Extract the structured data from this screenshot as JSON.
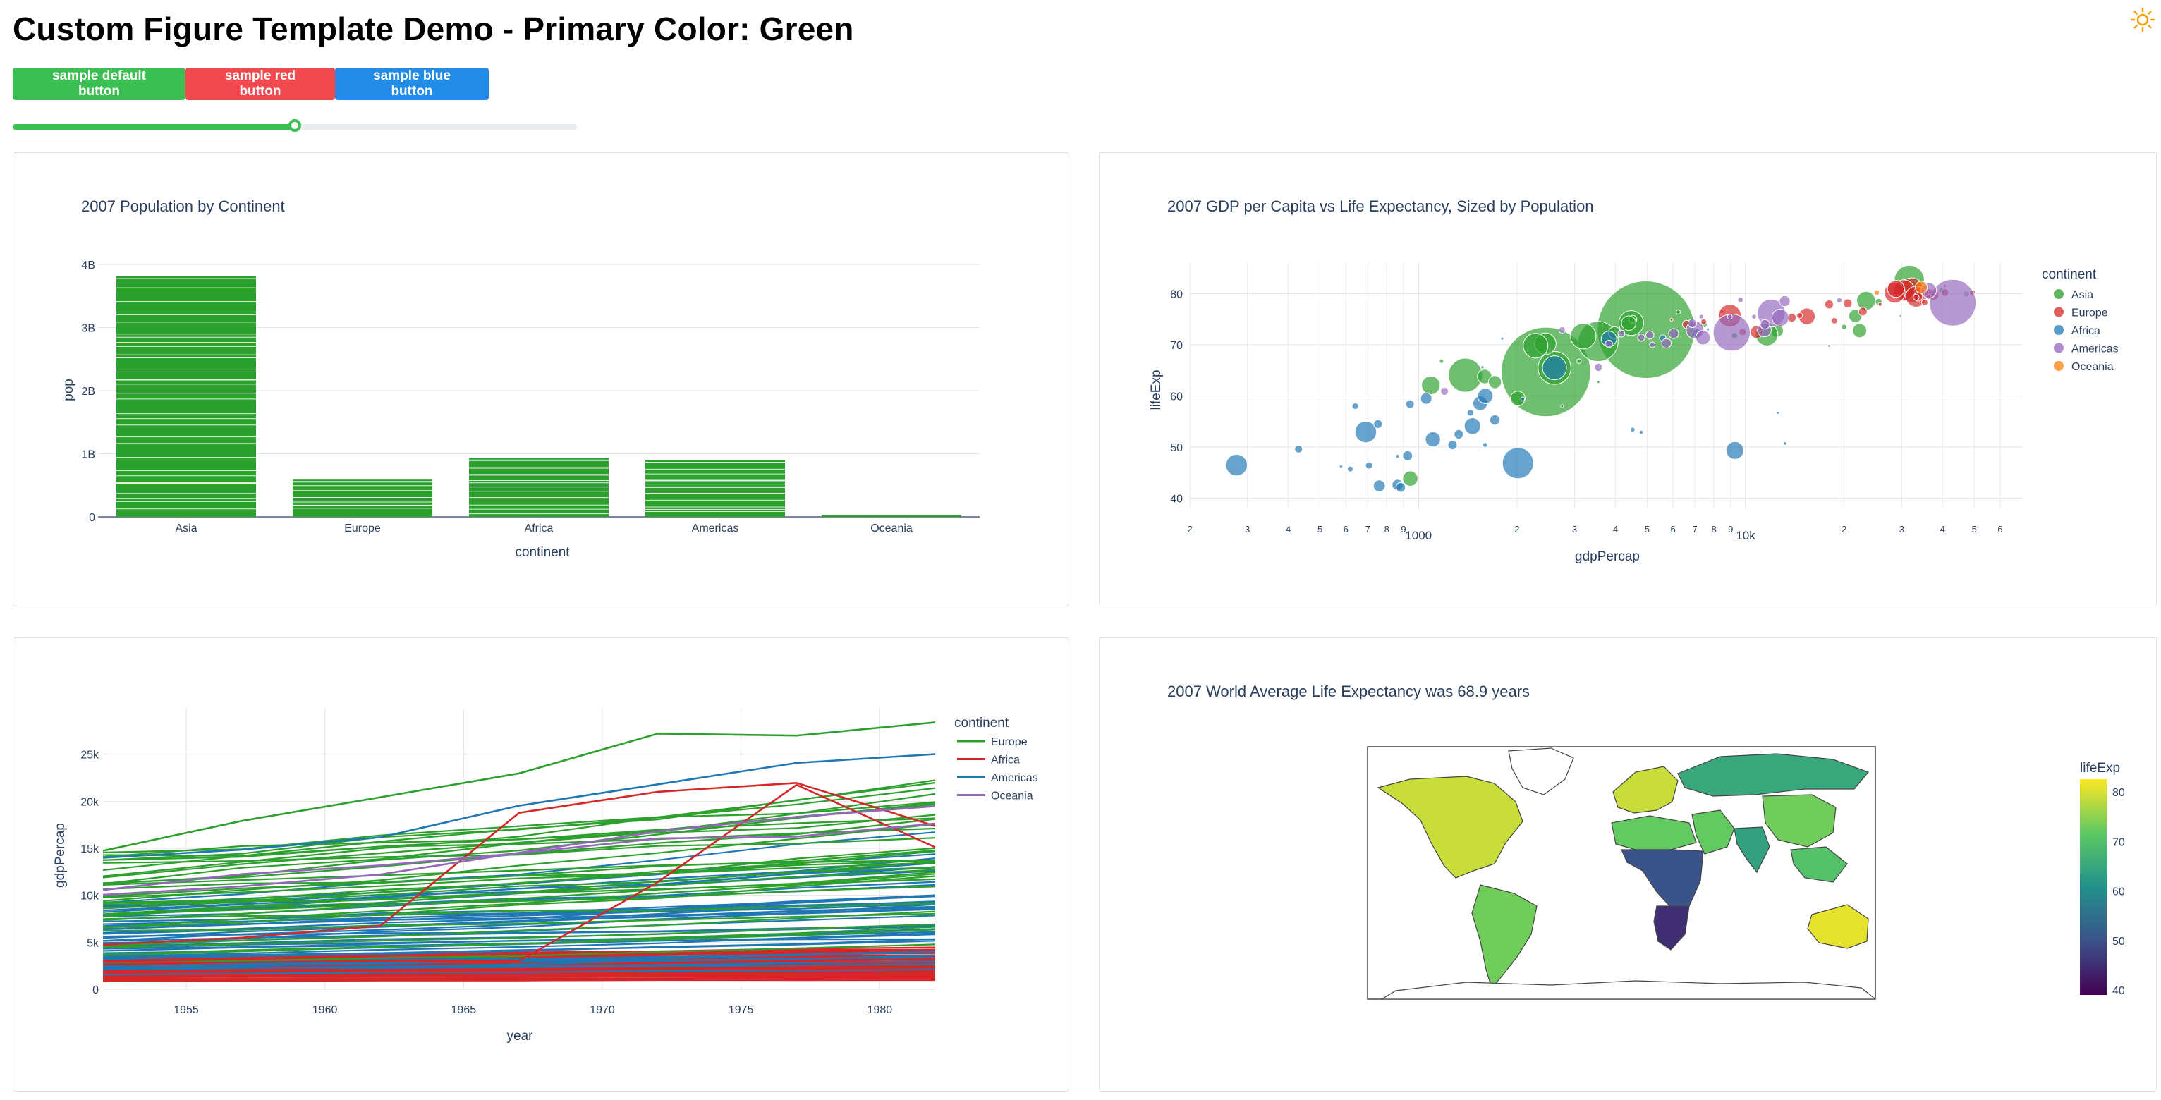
{
  "header": {
    "title": "Custom Figure Template Demo - Primary Color: Green",
    "theme_icon": "sun-icon"
  },
  "buttons": [
    {
      "label": "sample default button",
      "color": "#3cbf52"
    },
    {
      "label": "sample red button",
      "color": "#f04a4f"
    },
    {
      "label": "sample blue button",
      "color": "#228be6"
    }
  ],
  "slider": {
    "value_fraction": 0.5,
    "color": "#3cbf52"
  },
  "colors": {
    "green": "#2ca02c",
    "red": "#d62728",
    "blue": "#1f77b4",
    "purple": "#9467bd",
    "orange": "#ff7f0e",
    "text": "#2a3f5f"
  },
  "chart_data": [
    {
      "type": "bar",
      "title": "2007 Population by Continent",
      "xlabel": "continent",
      "ylabel": "pop",
      "categories": [
        "Asia",
        "Europe",
        "Africa",
        "Americas",
        "Oceania"
      ],
      "values": [
        3.81,
        0.59,
        0.93,
        0.9,
        0.025
      ],
      "unit": "billions",
      "ylim": [
        0,
        4.2
      ],
      "yticks": [
        "0",
        "1B",
        "2B",
        "3B",
        "4B"
      ],
      "color": "#2ca02c",
      "stacked_by": "country"
    },
    {
      "type": "scatter",
      "title": "2007 GDP per Capita vs Life Expectancy, Sized by Population",
      "xlabel": "gdpPercap",
      "ylabel": "lifeExp",
      "log_x": true,
      "xlim": [
        200,
        70000
      ],
      "ylim": [
        38,
        86
      ],
      "yticks": [
        40,
        50,
        60,
        70,
        80
      ],
      "xtick_labels": [
        "2",
        "3",
        "4",
        "5",
        "6",
        "7",
        "8",
        "9",
        "1000",
        "2",
        "3",
        "4",
        "5",
        "6",
        "7",
        "8",
        "9",
        "10k",
        "2",
        "3",
        "4",
        "5",
        "6"
      ],
      "legend": {
        "title": "continent",
        "position": "right",
        "items": [
          "Asia",
          "Europe",
          "Africa",
          "Americas",
          "Oceania"
        ]
      },
      "series": [
        {
          "name": "Asia",
          "color": "#2ca02c",
          "points": [
            [
              4959,
              72.96,
              1318
            ],
            [
              2452,
              64.7,
              1110
            ],
            [
              3541,
              70.65,
              223
            ],
            [
              1391,
              64.06,
              160
            ],
            [
              2605,
              65.48,
              150
            ],
            [
              1091,
              62.07,
              47.8
            ],
            [
              3190,
              71.69,
              91
            ],
            [
              4471,
              74.25,
              85
            ],
            [
              2442,
              70.2,
              65
            ],
            [
              944,
              43.83,
              31.9
            ],
            [
              12452,
              72.78,
              24.5
            ],
            [
              31656,
              82.6,
              127
            ],
            [
              23348,
              78.62,
              49
            ],
            [
              1593,
              63.79,
              28.9
            ],
            [
              2280,
              69.82,
              85
            ],
            [
              4184,
              72.4,
              3.1
            ],
            [
              3095,
              66.8,
              2.9
            ],
            [
              1713,
              62.7,
              23.3
            ],
            [
              22316,
              72.78,
              27.6
            ],
            [
              11606,
              71.99,
              69.5
            ],
            [
              4519,
              74.99,
              9.0
            ],
            [
              6223,
              76.4,
              2.6
            ],
            [
              39725,
              80.55,
              4.6
            ],
            [
              47307,
              79.97,
              4.5
            ],
            [
              21655,
              75.64,
              24.1
            ],
            [
              7458,
              74.0,
              6.1
            ],
            [
              3970,
              72.4,
              19.3
            ],
            [
              9253,
              71.8,
              5.5
            ],
            [
              2012,
              59.5,
              29.8
            ],
            [
              1176,
              66.8,
              2.5
            ],
            [
              4391,
              74.25,
              29.1
            ],
            [
              25523,
              78.4,
              6.4
            ],
            [
              29796,
              75.64,
              0.7
            ],
            [
              47143,
              80.2,
              0.8
            ],
            [
              20000,
              73.5,
              4.0
            ],
            [
              3548,
              62.7,
              0.9
            ]
          ]
        },
        {
          "name": "Europe",
          "color": "#d62728",
          "points": [
            [
              32170,
              80.7,
              82.4
            ],
            [
              30470,
              80.66,
              61.1
            ],
            [
              28569,
              80.2,
              60.0
            ],
            [
              33203,
              79.43,
              60.8
            ],
            [
              28821,
              80.94,
              40.4
            ],
            [
              15390,
              75.56,
              38.5
            ],
            [
              8458,
              76.5,
              1.8
            ],
            [
              10808,
              72.5,
              22.3
            ],
            [
              13858,
              75.3,
              10.2
            ],
            [
              18008,
              77.9,
              10.6
            ],
            [
              20510,
              78.1,
              10.7
            ],
            [
              22833,
              76.5,
              10.2
            ],
            [
              36126,
              79.8,
              8.2
            ],
            [
              33692,
              79.4,
              10.4
            ],
            [
              35278,
              78.3,
              5.5
            ],
            [
              33207,
              79.3,
              5.2
            ],
            [
              36181,
              80.2,
              9.0
            ],
            [
              40676,
              80.2,
              7.6
            ],
            [
              49357,
              80.2,
              4.6
            ],
            [
              37506,
              79.8,
              16.6
            ],
            [
              40676,
              81.5,
              0.3
            ],
            [
              9786,
              72.5,
              7.3
            ],
            [
              9253,
              74.0,
              2.0
            ],
            [
              14619,
              75.7,
              4.5
            ],
            [
              7446,
              74.5,
              4.6
            ],
            [
              5937,
              74.9,
              0.7
            ],
            [
              18679,
              74.7,
              5.4
            ],
            [
              25768,
              77.9,
              2.0
            ],
            [
              6598,
              74.0,
              9.3
            ],
            [
              8948,
              75.7,
              71.2
            ],
            [
              36319,
              79.4,
              4.1
            ]
          ]
        },
        {
          "name": "Africa",
          "color": "#1f77b4",
          "points": [
            [
              2014,
              46.86,
              135
            ],
            [
              2605,
              65.5,
              80.3
            ],
            [
              690,
              52.95,
              64.6
            ],
            [
              278,
              46.46,
              64.6
            ],
            [
              9270,
              49.34,
              43.9
            ],
            [
              1463,
              54.1,
              38.1
            ],
            [
              1107,
              51.5,
              31.9
            ],
            [
              1544,
              58.56,
              29.2
            ],
            [
              1328,
              52.5,
              12.3
            ],
            [
              1056,
              59.5,
              18.0
            ],
            [
              1601,
              60.0,
              32.5
            ],
            [
              3820,
              71.16,
              33.3
            ],
            [
              7093,
              72.3,
              10.3
            ],
            [
              5581,
              71.3,
              6.0
            ],
            [
              863,
              42.6,
              16.9
            ],
            [
              759,
              42.4,
              19.5
            ],
            [
              926,
              48.3,
              13.3
            ],
            [
              1712,
              55.3,
              14.3
            ],
            [
              883,
              42.1,
              12.3
            ],
            [
              430,
              49.6,
              8.4
            ],
            [
              1441,
              56.7,
              6.1
            ],
            [
              942,
              58.4,
              9.9
            ],
            [
              2082,
              59.4,
              2.1
            ],
            [
              4513,
              53.4,
              3.3
            ],
            [
              1271,
              50.4,
              11.8
            ],
            [
              2749,
              58.0,
              1.1
            ],
            [
              12570,
              56.7,
              0.7
            ],
            [
              13206,
              50.7,
              1.6
            ],
            [
              4797,
              52.9,
              2.1
            ],
            [
              1569,
              65.6,
              1.3
            ],
            [
              1803,
              71.2,
              0.8
            ],
            [
              7670,
              73.0,
              1.2
            ],
            [
              10957,
              72.8,
              1.3
            ],
            [
              619,
              45.7,
              4.6
            ],
            [
              641,
              58.0,
              5.7
            ],
            [
              706,
              46.4,
              6.9
            ],
            [
              752,
              54.5,
              10.3
            ],
            [
              580,
              46.2,
              1.5
            ],
            [
              1598,
              50.4,
              3.2
            ],
            [
              863,
              48.2,
              1.8
            ]
          ]
        },
        {
          "name": "Americas",
          "color": "#9467bd",
          "points": [
            [
              42952,
              78.24,
              301
            ],
            [
              9066,
              72.39,
              190
            ],
            [
              11978,
              76.2,
              108
            ],
            [
              12779,
              75.3,
              40.3
            ],
            [
              7007,
              72.9,
              44.2
            ],
            [
              7409,
              71.4,
              28.7
            ],
            [
              36319,
              80.65,
              33.4
            ],
            [
              13172,
              78.55,
              16.3
            ],
            [
              11416,
              72.9,
              26.1
            ],
            [
              6873,
              74.2,
              10.2
            ],
            [
              5186,
              70.0,
              4.1
            ],
            [
              9645,
              78.8,
              4.1
            ],
            [
              10611,
              75.5,
              3.2
            ],
            [
              3548,
              65.6,
              9.1
            ],
            [
              6025,
              72.2,
              13.8
            ],
            [
              5728,
              70.3,
              12.6
            ],
            [
              4172,
              72.2,
              6.7
            ],
            [
              2749,
              72.9,
              5.7
            ],
            [
              3820,
              70.2,
              7.5
            ],
            [
              1201,
              60.9,
              8.5
            ],
            [
              7321,
              75.5,
              2.8
            ],
            [
              5097,
              71.9,
              9.3
            ],
            [
              4797,
              71.4,
              6.9
            ],
            [
              8948,
              75.5,
              3.4
            ],
            [
              18009,
              69.8,
              1.1
            ],
            [
              19329,
              78.7,
              3.9
            ],
            [
              11460,
              74.0,
              12.6
            ]
          ]
        },
        {
          "name": "Oceania",
          "color": "#ff7f0e",
          "points": [
            [
              34435,
              81.24,
              20.4
            ],
            [
              25185,
              80.2,
              4.1
            ]
          ]
        }
      ]
    },
    {
      "type": "line",
      "title": "",
      "xlabel": "year",
      "ylabel": "gdpPercap",
      "xlim": [
        1952,
        1982
      ],
      "ylim": [
        0,
        30000
      ],
      "xticks": [
        1955,
        1960,
        1965,
        1970,
        1975,
        1980
      ],
      "yticks": [
        "0",
        "5k",
        "10k",
        "15k",
        "20k",
        "25k"
      ],
      "legend": {
        "title": "continent",
        "position": "top-right",
        "items": [
          "Europe",
          "Africa",
          "Americas",
          "Oceania"
        ]
      },
      "series": [
        {
          "name": "Europe",
          "color": "#2ca02c"
        },
        {
          "name": "Africa",
          "color": "#d62728"
        },
        {
          "name": "Americas",
          "color": "#1f77b4"
        },
        {
          "name": "Oceania",
          "color": "#9467bd"
        }
      ],
      "highlight_lines": [
        {
          "series": "Europe",
          "x": [
            1952,
            1957,
            1962,
            1967,
            1972,
            1977,
            1982
          ],
          "y": [
            14734,
            17909,
            20431,
            22966,
            27195,
            26982,
            28398
          ]
        },
        {
          "series": "Americas",
          "x": [
            1952,
            1957,
            1962,
            1967,
            1972,
            1977,
            1982
          ],
          "y": [
            13990,
            14847,
            16173,
            19530,
            21806,
            24073,
            25010
          ]
        },
        {
          "series": "Africa",
          "x": [
            1952,
            1957,
            1962,
            1967,
            1972,
            1977,
            1982
          ],
          "y": [
            4725,
            5488,
            6757,
            18772,
            21011,
            21951,
            17364
          ]
        },
        {
          "series": "Africa",
          "x": [
            1952,
            1957,
            1962,
            1967,
            1972,
            1977,
            1982
          ],
          "y": [
            2669,
            2864,
            3021,
            3020,
            11403,
            21745,
            15113
          ]
        },
        {
          "series": "Oceania",
          "x": [
            1952,
            1957,
            1962,
            1967,
            1972,
            1977,
            1982
          ],
          "y": [
            10040,
            10950,
            12217,
            14526,
            16789,
            18334,
            19477
          ]
        },
        {
          "series": "Oceania",
          "x": [
            1952,
            1957,
            1962,
            1967,
            1972,
            1977,
            1982
          ],
          "y": [
            10557,
            12247,
            13176,
            14464,
            16046,
            16234,
            17632
          ]
        }
      ]
    },
    {
      "type": "choropleth",
      "title": "2007 World Average Life Expectancy was 68.9 years",
      "colorbar": {
        "title": "lifeExp",
        "range": [
          39,
          82.6
        ],
        "ticks": [
          40,
          50,
          60,
          70,
          80
        ]
      },
      "colorscale": [
        "#440154",
        "#3b528b",
        "#21918c",
        "#5ec962",
        "#fde725"
      ],
      "regions": [
        {
          "name": "North America",
          "value": 79
        },
        {
          "name": "Greenland",
          "value": null
        },
        {
          "name": "South America",
          "value": 73
        },
        {
          "name": "Europe",
          "value": 79
        },
        {
          "name": "North Africa",
          "value": 72
        },
        {
          "name": "Sub-Saharan Africa",
          "value": 50
        },
        {
          "name": "Southern Africa",
          "value": 45
        },
        {
          "name": "Russia",
          "value": 65
        },
        {
          "name": "Middle East",
          "value": 72
        },
        {
          "name": "India",
          "value": 64
        },
        {
          "name": "China",
          "value": 73
        },
        {
          "name": "Southeast Asia",
          "value": 70
        },
        {
          "name": "Australia",
          "value": 81
        },
        {
          "name": "Antarctica",
          "value": null
        }
      ]
    }
  ]
}
